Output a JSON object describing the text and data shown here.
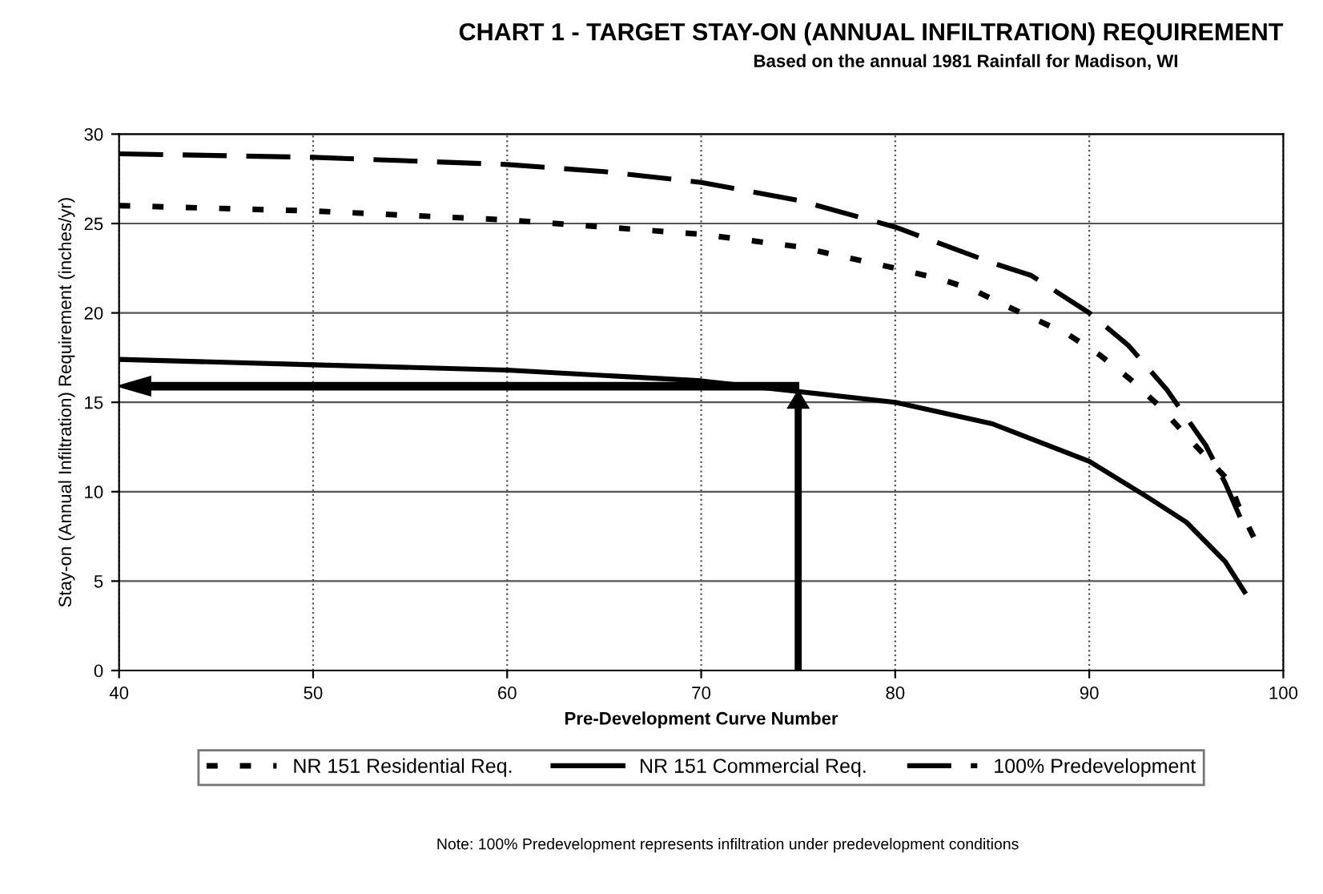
{
  "chart_data": {
    "type": "line",
    "title": "CHART 1 - TARGET STAY-ON (ANNUAL INFILTRATION) REQUIREMENT",
    "subtitle": "Based on the annual 1981 Rainfall for Madison, WI",
    "xlabel": "Pre-Development Curve Number",
    "ylabel": "Stay-on (Annual Infiltration) Requirement (inches/yr)",
    "xlim": [
      40,
      100
    ],
    "xticks": [
      40,
      50,
      60,
      70,
      80,
      90,
      100
    ],
    "ylim": [
      0,
      30
    ],
    "yticks": [
      0,
      5,
      10,
      15,
      20,
      25,
      30
    ],
    "grid": true,
    "legend": "bottom",
    "marker": "none",
    "series": [
      {
        "name": "NR 151 Residential Req.",
        "color": "#000000",
        "line_style": "dotted",
        "x": [
          40,
          50,
          60,
          70,
          75,
          80,
          82.3,
          84,
          85.7,
          87.3,
          88.9,
          90.6,
          92.1,
          93.5,
          94.7,
          95.8,
          97.2,
          97.7,
          98.5
        ],
        "values": [
          26.0,
          25.7,
          25.2,
          24.4,
          23.7,
          22.5,
          21.9,
          21.3,
          20.4,
          19.6,
          18.8,
          17.6,
          16.3,
          14.9,
          13.5,
          12.2,
          10.6,
          9.2,
          7.4
        ]
      },
      {
        "name": "NR 151 Commercial Req.",
        "color": "#000000",
        "line_style": "solid",
        "x": [
          40,
          50,
          60,
          70,
          75,
          80,
          85,
          90,
          93,
          95,
          97,
          98
        ],
        "values": [
          17.4,
          17.1,
          16.8,
          16.2,
          15.6,
          15.0,
          13.8,
          11.7,
          9.7,
          8.3,
          6.1,
          4.4
        ]
      },
      {
        "name": "100% Predevelopment",
        "color": "#000000",
        "line_style": "dashed",
        "x": [
          40,
          50,
          60,
          65,
          70,
          75,
          80,
          85,
          87,
          90,
          92,
          94,
          96,
          97,
          98
        ],
        "values": [
          28.9,
          28.7,
          28.3,
          27.9,
          27.3,
          26.3,
          24.8,
          22.8,
          22.1,
          20.0,
          18.2,
          15.7,
          12.6,
          10.5,
          8.0
        ]
      }
    ],
    "annotations": [
      "Note: 100% Predevelopment represents infiltration under predevelopment conditions"
    ]
  }
}
